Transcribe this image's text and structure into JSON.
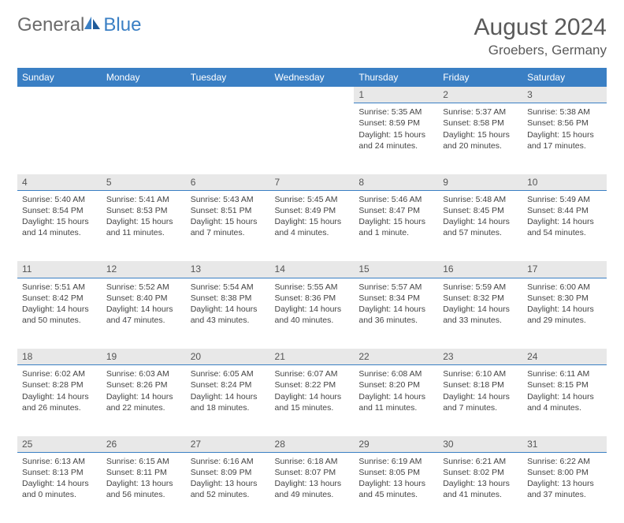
{
  "logo": {
    "general": "General",
    "blue": "Blue"
  },
  "title": "August 2024",
  "location": "Groebers, Germany",
  "colors": {
    "header_bg": "#3a7fc4",
    "header_text": "#ffffff",
    "daynum_bg": "#e8e8e8",
    "border": "#3a7fc4"
  },
  "dayHeaders": [
    "Sunday",
    "Monday",
    "Tuesday",
    "Wednesday",
    "Thursday",
    "Friday",
    "Saturday"
  ],
  "weeks": [
    {
      "nums": [
        "",
        "",
        "",
        "",
        "1",
        "2",
        "3"
      ],
      "cells": [
        "",
        "",
        "",
        "",
        "Sunrise: 5:35 AM\nSunset: 8:59 PM\nDaylight: 15 hours and 24 minutes.",
        "Sunrise: 5:37 AM\nSunset: 8:58 PM\nDaylight: 15 hours and 20 minutes.",
        "Sunrise: 5:38 AM\nSunset: 8:56 PM\nDaylight: 15 hours and 17 minutes."
      ]
    },
    {
      "nums": [
        "4",
        "5",
        "6",
        "7",
        "8",
        "9",
        "10"
      ],
      "cells": [
        "Sunrise: 5:40 AM\nSunset: 8:54 PM\nDaylight: 15 hours and 14 minutes.",
        "Sunrise: 5:41 AM\nSunset: 8:53 PM\nDaylight: 15 hours and 11 minutes.",
        "Sunrise: 5:43 AM\nSunset: 8:51 PM\nDaylight: 15 hours and 7 minutes.",
        "Sunrise: 5:45 AM\nSunset: 8:49 PM\nDaylight: 15 hours and 4 minutes.",
        "Sunrise: 5:46 AM\nSunset: 8:47 PM\nDaylight: 15 hours and 1 minute.",
        "Sunrise: 5:48 AM\nSunset: 8:45 PM\nDaylight: 14 hours and 57 minutes.",
        "Sunrise: 5:49 AM\nSunset: 8:44 PM\nDaylight: 14 hours and 54 minutes."
      ]
    },
    {
      "nums": [
        "11",
        "12",
        "13",
        "14",
        "15",
        "16",
        "17"
      ],
      "cells": [
        "Sunrise: 5:51 AM\nSunset: 8:42 PM\nDaylight: 14 hours and 50 minutes.",
        "Sunrise: 5:52 AM\nSunset: 8:40 PM\nDaylight: 14 hours and 47 minutes.",
        "Sunrise: 5:54 AM\nSunset: 8:38 PM\nDaylight: 14 hours and 43 minutes.",
        "Sunrise: 5:55 AM\nSunset: 8:36 PM\nDaylight: 14 hours and 40 minutes.",
        "Sunrise: 5:57 AM\nSunset: 8:34 PM\nDaylight: 14 hours and 36 minutes.",
        "Sunrise: 5:59 AM\nSunset: 8:32 PM\nDaylight: 14 hours and 33 minutes.",
        "Sunrise: 6:00 AM\nSunset: 8:30 PM\nDaylight: 14 hours and 29 minutes."
      ]
    },
    {
      "nums": [
        "18",
        "19",
        "20",
        "21",
        "22",
        "23",
        "24"
      ],
      "cells": [
        "Sunrise: 6:02 AM\nSunset: 8:28 PM\nDaylight: 14 hours and 26 minutes.",
        "Sunrise: 6:03 AM\nSunset: 8:26 PM\nDaylight: 14 hours and 22 minutes.",
        "Sunrise: 6:05 AM\nSunset: 8:24 PM\nDaylight: 14 hours and 18 minutes.",
        "Sunrise: 6:07 AM\nSunset: 8:22 PM\nDaylight: 14 hours and 15 minutes.",
        "Sunrise: 6:08 AM\nSunset: 8:20 PM\nDaylight: 14 hours and 11 minutes.",
        "Sunrise: 6:10 AM\nSunset: 8:18 PM\nDaylight: 14 hours and 7 minutes.",
        "Sunrise: 6:11 AM\nSunset: 8:15 PM\nDaylight: 14 hours and 4 minutes."
      ]
    },
    {
      "nums": [
        "25",
        "26",
        "27",
        "28",
        "29",
        "30",
        "31"
      ],
      "cells": [
        "Sunrise: 6:13 AM\nSunset: 8:13 PM\nDaylight: 14 hours and 0 minutes.",
        "Sunrise: 6:15 AM\nSunset: 8:11 PM\nDaylight: 13 hours and 56 minutes.",
        "Sunrise: 6:16 AM\nSunset: 8:09 PM\nDaylight: 13 hours and 52 minutes.",
        "Sunrise: 6:18 AM\nSunset: 8:07 PM\nDaylight: 13 hours and 49 minutes.",
        "Sunrise: 6:19 AM\nSunset: 8:05 PM\nDaylight: 13 hours and 45 minutes.",
        "Sunrise: 6:21 AM\nSunset: 8:02 PM\nDaylight: 13 hours and 41 minutes.",
        "Sunrise: 6:22 AM\nSunset: 8:00 PM\nDaylight: 13 hours and 37 minutes."
      ]
    }
  ]
}
